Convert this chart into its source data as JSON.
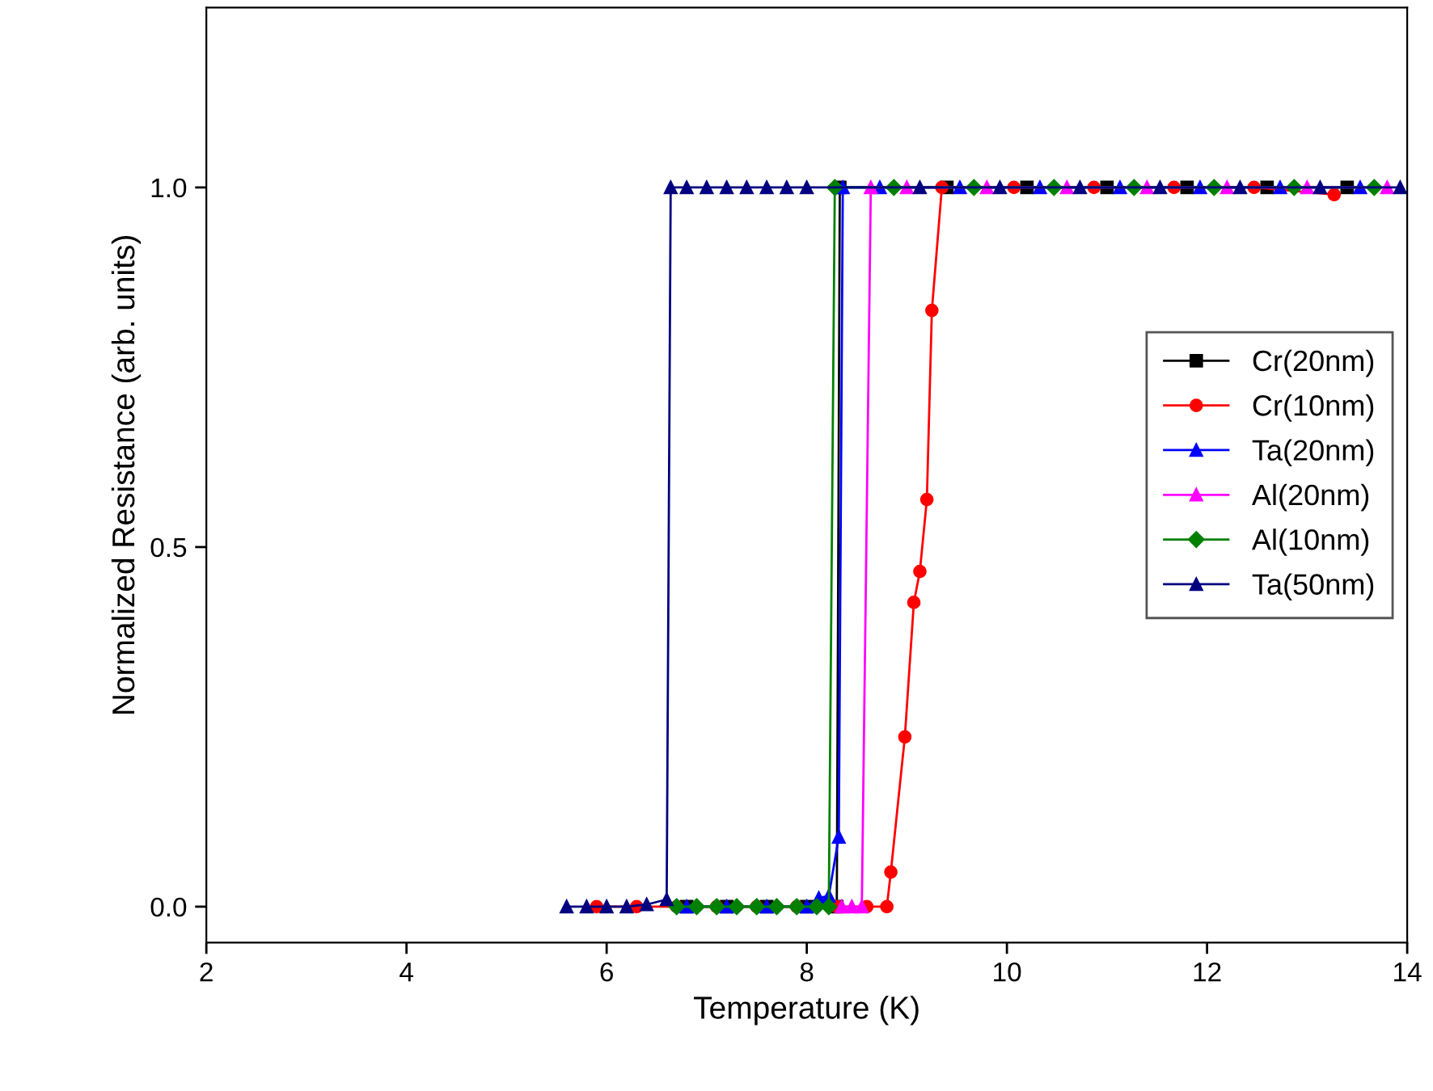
{
  "chart_data": {
    "type": "line",
    "xlabel": "Temperature (K)",
    "ylabel": "Normalized Resistance (arb. units)",
    "xlim": [
      2,
      14
    ],
    "xticks": [
      2,
      4,
      6,
      8,
      10,
      12,
      14
    ],
    "ylim": [
      -0.05,
      1.25
    ],
    "yticks": [
      {
        "value": 0,
        "label": "0.0"
      },
      {
        "value": 0.5,
        "label": "0.5"
      },
      {
        "value": 1,
        "label": "1.0"
      }
    ],
    "grid": false,
    "legend": "center right",
    "line_style": "solid",
    "series": [
      {
        "name": "Cr(20nm)",
        "color": "#000000",
        "marker": "square",
        "x": [
          6.8,
          7.2,
          7.6,
          8.0,
          8.3,
          8.33,
          9.4,
          10.2,
          11.0,
          11.8,
          12.6,
          13.4
        ],
        "values": [
          0,
          0,
          0,
          0,
          0,
          1,
          1,
          1,
          1,
          1,
          1,
          1
        ]
      },
      {
        "name": "Cr(10nm)",
        "color": "#ff0000",
        "marker": "circle",
        "x": [
          5.9,
          6.3,
          6.7,
          7.1,
          7.5,
          7.9,
          8.3,
          8.6,
          8.8,
          8.84,
          8.98,
          9.07,
          9.13,
          9.2,
          9.25,
          9.35,
          10.07,
          10.87,
          11.67,
          12.47,
          13.27
        ],
        "values": [
          0,
          0,
          0,
          0,
          0,
          0,
          0,
          0,
          0,
          0.048,
          0.236,
          0.423,
          0.466,
          0.566,
          0.829,
          1,
          1,
          1,
          1,
          1,
          0.99
        ]
      },
      {
        "name": "Ta(20nm)",
        "color": "#0000ff",
        "marker": "triangle",
        "x": [
          6.8,
          7.2,
          7.6,
          8.0,
          8.12,
          8.22,
          8.32,
          8.36,
          8.73,
          9.53,
          10.33,
          11.13,
          11.93,
          12.73,
          13.53
        ],
        "values": [
          0,
          0,
          0,
          0,
          0.012,
          0.015,
          0.097,
          1,
          1,
          1,
          1,
          1,
          1,
          1,
          1
        ]
      },
      {
        "name": "Al(20nm)",
        "color": "#ff00ff",
        "marker": "triangle",
        "x": [
          8.35,
          8.45,
          8.55,
          8.64,
          9.0,
          9.8,
          10.6,
          11.4,
          12.2,
          13.0,
          13.8
        ],
        "values": [
          0,
          0,
          0,
          1,
          1,
          1,
          1,
          1,
          1,
          1,
          1
        ]
      },
      {
        "name": "Al(10nm)",
        "color": "#008000",
        "marker": "diamond",
        "x": [
          6.7,
          6.9,
          7.1,
          7.3,
          7.5,
          7.7,
          7.9,
          8.1,
          8.22,
          8.28,
          8.87,
          9.67,
          10.47,
          11.27,
          12.07,
          12.87,
          13.67
        ],
        "values": [
          0,
          0,
          0,
          0,
          0,
          0,
          0,
          0,
          0,
          1,
          1,
          1,
          1,
          1,
          1,
          1,
          1
        ]
      },
      {
        "name": "Ta(50nm)",
        "color": "#000080",
        "marker": "triangle",
        "x": [
          5.6,
          5.8,
          6.0,
          6.2,
          6.4,
          6.6,
          6.64,
          6.8,
          7.0,
          7.2,
          7.4,
          7.6,
          7.8,
          8.0,
          9.13,
          9.93,
          10.73,
          11.53,
          12.33,
          13.13,
          13.93
        ],
        "values": [
          0,
          0,
          0,
          0,
          0.003,
          0.01,
          1,
          1,
          1,
          1,
          1,
          1,
          1,
          1,
          1,
          1,
          1,
          1,
          1,
          1,
          1
        ]
      }
    ]
  }
}
